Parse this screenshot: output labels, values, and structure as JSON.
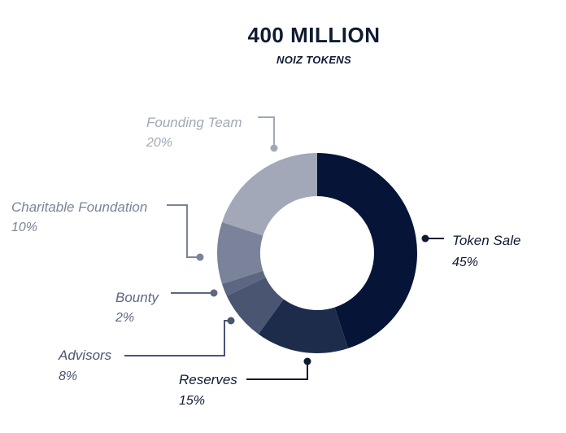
{
  "header": {
    "title": "400 MILLION",
    "subtitle": "NOIZ TOKENS"
  },
  "chart_data": {
    "type": "pie",
    "donut": true,
    "title": "400 MILLION",
    "subtitle": "NOIZ TOKENS",
    "slices": [
      {
        "label": "Token Sale",
        "value": 45,
        "display": "45%",
        "color": "#061438"
      },
      {
        "label": "Reserves",
        "value": 15,
        "display": "15%",
        "color": "#1e2c4c"
      },
      {
        "label": "Advisors",
        "value": 8,
        "display": "8%",
        "color": "#4a5572"
      },
      {
        "label": "Bounty",
        "value": 2,
        "display": "2%",
        "color": "#5d6781"
      },
      {
        "label": "Charitable Foundation",
        "value": 10,
        "display": "10%",
        "color": "#7a8399"
      },
      {
        "label": "Founding Team",
        "value": 20,
        "display": "20%",
        "color": "#a2a8b7"
      }
    ]
  }
}
